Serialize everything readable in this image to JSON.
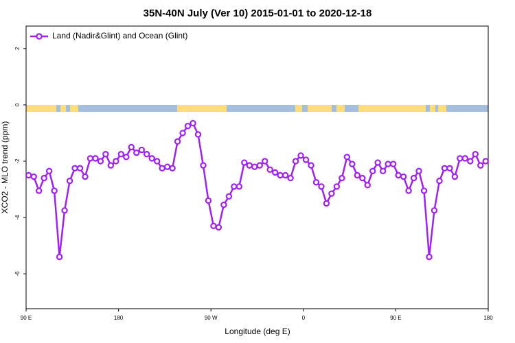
{
  "chart_data": {
    "type": "line",
    "title": "35N-40N July (Ver 10)   2015-01-01 to 2020-12-18",
    "x_label": "Longitude (deg E)",
    "y_label": "XCO2 - MLO trend (ppm)",
    "xlim": [
      90,
      540
    ],
    "xticks": [
      {
        "value": 90,
        "label": "90 E"
      },
      180,
      {
        "value": 270,
        "label": "90 W"
      },
      {
        "value": 360,
        "label": "0"
      },
      {
        "value": 450,
        "label": "90 E"
      },
      {
        "value": 540,
        "label": "180"
      }
    ],
    "ylim": [
      -7.24,
      2.8
    ],
    "yticks": [
      -6,
      -4,
      -2,
      0,
      2
    ],
    "legend": "top-left",
    "x": [
      92.5,
      97.5,
      102.5,
      107.5,
      112.5,
      117.5,
      122.5,
      127.5,
      132.5,
      137.5,
      142.5,
      147.5,
      152.5,
      157.5,
      162.5,
      167.5,
      172.5,
      177.5,
      182.5,
      187.5,
      192.5,
      197.5,
      202.5,
      207.5,
      212.5,
      217.5,
      222.5,
      227.5,
      232.5,
      237.5,
      242.5,
      247.5,
      252.5,
      257.5,
      262.5,
      267.5,
      272.5,
      277.5,
      282.5,
      287.5,
      292.5,
      297.5,
      302.5,
      307.5,
      312.5,
      317.5,
      322.5,
      327.5,
      332.5,
      337.5,
      342.5,
      347.5,
      352.5,
      357.5,
      362.5,
      367.5,
      372.5,
      377.5,
      382.5,
      387.5,
      392.5,
      397.5,
      402.5,
      407.5,
      412.5,
      417.5,
      422.5,
      427.5,
      432.5,
      437.5,
      442.5,
      447.5,
      452.5,
      457.5,
      462.5,
      467.5,
      472.5,
      477.5,
      482.5,
      487.5,
      492.5,
      497.5,
      502.5,
      507.5,
      512.5,
      517.5,
      522.5,
      527.5,
      532.5,
      537.5
    ],
    "series": [
      {
        "name": "Land (Nadir&Glint) and Ocean (Glint)",
        "color": "#a020f0",
        "values": [
          -2.5,
          -2.55,
          -3.05,
          -2.6,
          -2.35,
          -3.05,
          -5.4,
          -3.75,
          -2.7,
          -2.25,
          -2.25,
          -2.55,
          -1.9,
          -1.9,
          -2.0,
          -1.75,
          -2.15,
          -2.0,
          -1.75,
          -1.85,
          -1.5,
          -1.7,
          -1.6,
          -1.75,
          -1.9,
          -2.0,
          -2.25,
          -2.2,
          -2.25,
          -1.3,
          -1.0,
          -0.75,
          -0.65,
          -1.05,
          -2.15,
          -3.4,
          -4.3,
          -4.35,
          -3.55,
          -3.25,
          -2.9,
          -2.9,
          -2.05,
          -2.15,
          -2.2,
          -2.15,
          -2.0,
          -2.3,
          -2.4,
          -2.5,
          -2.5,
          -2.6,
          -2.0,
          -1.8,
          -1.95,
          -2.15,
          -2.75,
          -2.9,
          -3.5,
          -3.15,
          -2.9,
          -2.6,
          -1.85,
          -2.1,
          -2.5,
          -2.6,
          -2.85,
          -2.35,
          -2.05,
          -2.35,
          -2.1,
          -2.1,
          -2.5,
          -2.55,
          -3.05,
          -2.6,
          -2.35,
          -3.05,
          -5.4,
          -3.75,
          -2.7,
          -2.25,
          -2.25,
          -2.55,
          -1.9,
          -1.9,
          -2.0,
          -1.75,
          -2.15,
          -2.0
        ]
      }
    ]
  }
}
